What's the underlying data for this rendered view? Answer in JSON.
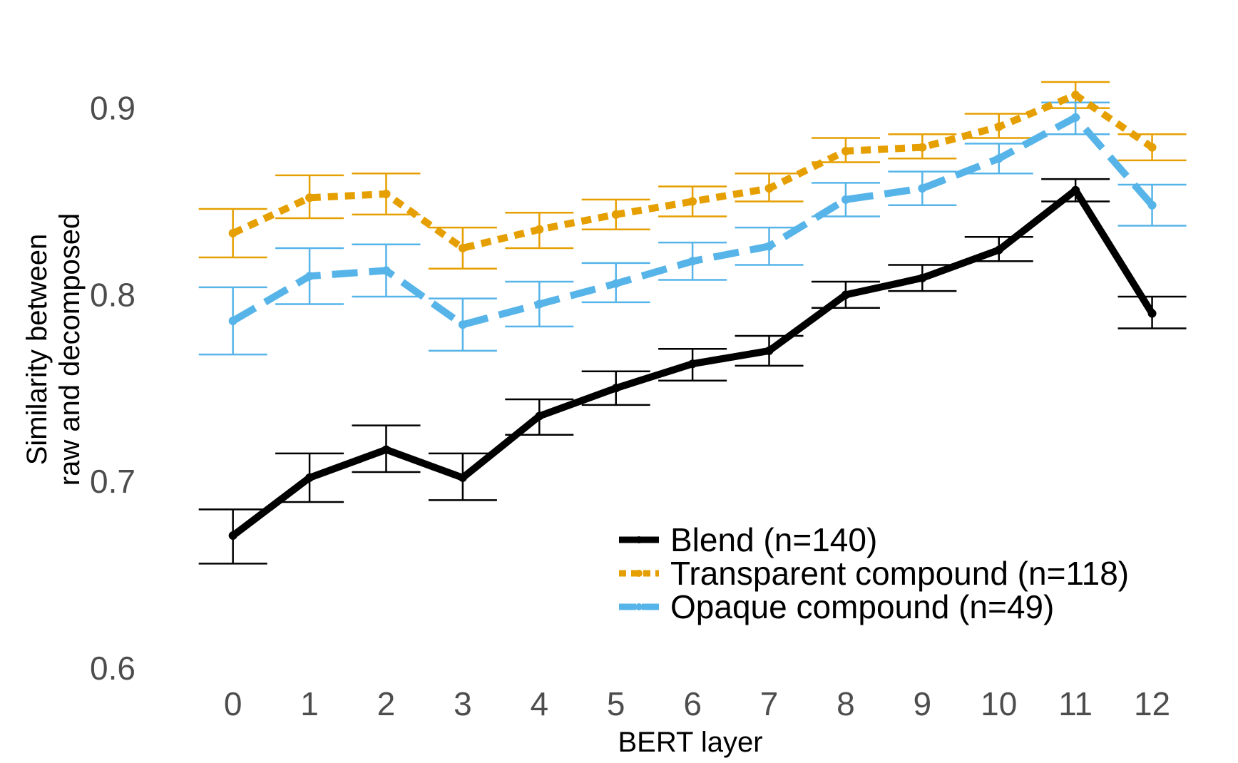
{
  "chart_data": {
    "type": "line",
    "xlabel": "BERT layer",
    "ylabel": [
      "Similarity between",
      "raw and decomposed"
    ],
    "x": [
      0,
      1,
      2,
      3,
      4,
      5,
      6,
      7,
      8,
      9,
      10,
      11,
      12
    ],
    "ylim": [
      0.595,
      0.935
    ],
    "xlim": [
      -0.9,
      12.6
    ],
    "yticks": [
      0.6,
      0.7,
      0.8,
      0.9
    ],
    "yticklabels": [
      "0.6",
      "0.7",
      "0.8",
      "0.9"
    ],
    "grid": false,
    "legend_position": "bottom-right",
    "series": [
      {
        "name": "Blend (n=140)",
        "color": "#000000",
        "dash": "solid",
        "values": [
          0.671,
          0.702,
          0.717,
          0.702,
          0.735,
          0.75,
          0.763,
          0.77,
          0.8,
          0.809,
          0.824,
          0.856,
          0.79
        ],
        "lower": [
          0.656,
          0.689,
          0.705,
          0.69,
          0.725,
          0.741,
          0.754,
          0.762,
          0.793,
          0.802,
          0.818,
          0.85,
          0.782
        ],
        "upper": [
          0.685,
          0.715,
          0.73,
          0.715,
          0.744,
          0.759,
          0.771,
          0.778,
          0.807,
          0.816,
          0.831,
          0.862,
          0.799
        ]
      },
      {
        "name": "Transparent compound (n=118)",
        "color": "#E69F00",
        "dash": "dotted",
        "values": [
          0.833,
          0.852,
          0.854,
          0.825,
          0.835,
          0.843,
          0.85,
          0.857,
          0.877,
          0.879,
          0.89,
          0.907,
          0.879
        ],
        "lower": [
          0.82,
          0.841,
          0.843,
          0.814,
          0.825,
          0.835,
          0.842,
          0.85,
          0.871,
          0.873,
          0.884,
          0.9,
          0.872
        ],
        "upper": [
          0.846,
          0.864,
          0.865,
          0.836,
          0.844,
          0.851,
          0.858,
          0.865,
          0.884,
          0.886,
          0.897,
          0.914,
          0.886
        ]
      },
      {
        "name": "Opaque compound (n=49)",
        "color": "#56B4E9",
        "dash": "dashed",
        "values": [
          0.786,
          0.81,
          0.813,
          0.784,
          0.795,
          0.806,
          0.818,
          0.826,
          0.851,
          0.857,
          0.873,
          0.895,
          0.848
        ],
        "lower": [
          0.768,
          0.795,
          0.799,
          0.77,
          0.783,
          0.796,
          0.808,
          0.816,
          0.842,
          0.848,
          0.865,
          0.886,
          0.837
        ],
        "upper": [
          0.804,
          0.825,
          0.827,
          0.798,
          0.807,
          0.817,
          0.828,
          0.836,
          0.86,
          0.866,
          0.881,
          0.903,
          0.859
        ]
      }
    ]
  }
}
